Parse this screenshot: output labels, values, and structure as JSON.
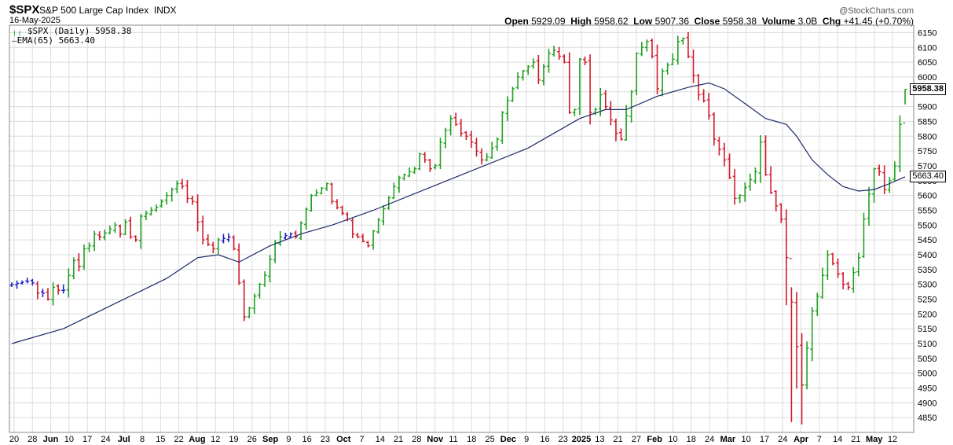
{
  "header": {
    "symbol": "$SPX",
    "name": "S&P 500 Large Cap Index",
    "exchange": "INDX",
    "date": "16-May-2025",
    "brand": "@StockCharts.com",
    "open_label": "Open",
    "open": "5929.09",
    "high_label": "High",
    "high": "5958.62",
    "low_label": "Low",
    "low": "5907.36",
    "close_label": "Close",
    "close": "5958.38",
    "volume_label": "Volume",
    "volume": "3.0B",
    "chg_label": "Chg",
    "chg": "+41.45 (+0.70%)"
  },
  "legend": {
    "price": "$SPX (Daily) 5958.38",
    "ema": "EMA(65) 5663.40"
  },
  "colors": {
    "up": "#22a022",
    "down": "#d11a2a",
    "neutral": "#2020c8",
    "ema": "#1c2a6a",
    "grid": "#dcdcdc"
  },
  "chart_data": {
    "type": "ohlc-bar",
    "title": "$SPX S&P 500 Large Cap Index INDX",
    "price_tag": "5958.38",
    "ema_tag": "5663.40",
    "ylim": [
      4800,
      6175
    ],
    "y_ticks": [
      4850,
      4900,
      4950,
      5000,
      5050,
      5100,
      5150,
      5200,
      5250,
      5300,
      5350,
      5400,
      5450,
      5500,
      5550,
      5600,
      5650,
      5700,
      5750,
      5800,
      5850,
      5900,
      5950,
      6000,
      6050,
      6100,
      6150
    ],
    "x_labels": [
      "20",
      "28",
      "Jun",
      "10",
      "17",
      "24",
      "Jul",
      "8",
      "15",
      "22",
      "Aug",
      "12",
      "19",
      "26",
      "Sep",
      "9",
      "16",
      "23",
      "Oct",
      "7",
      "14",
      "21",
      "28",
      "Nov",
      "11",
      "18",
      "25",
      "Dec",
      "9",
      "16",
      "23",
      "2025",
      "13",
      "21",
      "27",
      "Feb",
      "10",
      "18",
      "24",
      "Mar",
      "10",
      "17",
      "24",
      "Apr",
      "7",
      "14",
      "21",
      "May",
      "12"
    ],
    "x_label_bold": [
      "Jun",
      "Jul",
      "Aug",
      "Sep",
      "Oct",
      "Nov",
      "Dec",
      "2025",
      "Feb",
      "Mar",
      "Apr",
      "May"
    ],
    "segments": [
      [
        0,
        5300,
        5310
      ],
      [
        4,
        5305,
        5270
      ],
      [
        6,
        5270,
        5250
      ],
      [
        8,
        5290,
        5280
      ],
      [
        10,
        5280,
        5380
      ],
      [
        13,
        5360,
        5420
      ],
      [
        15,
        5430,
        5470
      ],
      [
        17,
        5460,
        5500
      ],
      [
        21,
        5470,
        5510
      ],
      [
        23,
        5460,
        5450
      ],
      [
        25,
        5530,
        5560
      ],
      [
        29,
        5580,
        5640
      ],
      [
        33,
        5630,
        5590
      ],
      [
        35,
        5580,
        5510
      ],
      [
        37,
        5450,
        5420
      ],
      [
        40,
        5450,
        5460
      ],
      [
        43,
        5420,
        5190
      ],
      [
        46,
        5220,
        5300
      ],
      [
        49,
        5330,
        5440
      ],
      [
        52,
        5460,
        5470
      ],
      [
        55,
        5460,
        5600
      ],
      [
        59,
        5610,
        5640
      ],
      [
        62,
        5580,
        5540
      ],
      [
        65,
        5520,
        5470
      ],
      [
        67,
        5460,
        5430
      ],
      [
        70,
        5480,
        5630
      ],
      [
        75,
        5660,
        5690
      ],
      [
        79,
        5740,
        5720
      ],
      [
        81,
        5690,
        5700
      ],
      [
        83,
        5780,
        5860
      ],
      [
        86,
        5840,
        5810
      ],
      [
        88,
        5800,
        5780
      ],
      [
        90,
        5750,
        5720
      ],
      [
        92,
        5730,
        5790
      ],
      [
        95,
        5880,
        6000
      ],
      [
        99,
        6020,
        6050
      ],
      [
        102,
        5990,
        6080
      ],
      [
        105,
        6090,
        6070
      ],
      [
        107,
        6050,
        5880
      ],
      [
        109,
        5890,
        6060
      ],
      [
        111,
        6050,
        5880
      ],
      [
        113,
        5890,
        5940
      ],
      [
        115,
        5900,
        5810
      ],
      [
        118,
        5790,
        5950
      ],
      [
        121,
        6080,
        6120
      ],
      [
        124,
        6070,
        5960
      ],
      [
        126,
        6020,
        6060
      ],
      [
        129,
        6120,
        6130
      ],
      [
        131,
        6070,
        5940
      ],
      [
        134,
        5920,
        5870
      ],
      [
        136,
        5790,
        5720
      ],
      [
        139,
        5660,
        5590
      ],
      [
        141,
        5600,
        5680
      ],
      [
        145,
        5780,
        5670
      ],
      [
        147,
        5610,
        5520
      ],
      [
        150,
        5390,
        5090
      ],
      [
        153,
        4960,
        5210
      ],
      [
        156,
        5260,
        5400
      ],
      [
        159,
        5370,
        5300
      ],
      [
        162,
        5290,
        5390
      ],
      [
        165,
        5520,
        5690
      ],
      [
        168,
        5680,
        5620
      ],
      [
        170,
        5650,
        5700
      ],
      [
        172,
        5840,
        5900
      ],
      [
        173,
        5917,
        5958
      ]
    ],
    "ema_points": [
      [
        0,
        5100
      ],
      [
        10,
        5150
      ],
      [
        20,
        5235
      ],
      [
        30,
        5320
      ],
      [
        36,
        5390
      ],
      [
        40,
        5400
      ],
      [
        44,
        5375
      ],
      [
        50,
        5430
      ],
      [
        56,
        5470
      ],
      [
        62,
        5500
      ],
      [
        70,
        5550
      ],
      [
        80,
        5620
      ],
      [
        90,
        5690
      ],
      [
        100,
        5760
      ],
      [
        110,
        5860
      ],
      [
        115,
        5890
      ],
      [
        119,
        5890
      ],
      [
        125,
        5935
      ],
      [
        131,
        5965
      ],
      [
        135,
        5980
      ],
      [
        138,
        5960
      ],
      [
        142,
        5910
      ],
      [
        146,
        5860
      ],
      [
        150,
        5840
      ],
      [
        152,
        5800
      ],
      [
        155,
        5720
      ],
      [
        158,
        5670
      ],
      [
        161,
        5630
      ],
      [
        164,
        5615
      ],
      [
        167,
        5620
      ],
      [
        170,
        5640
      ],
      [
        173,
        5663
      ]
    ]
  }
}
